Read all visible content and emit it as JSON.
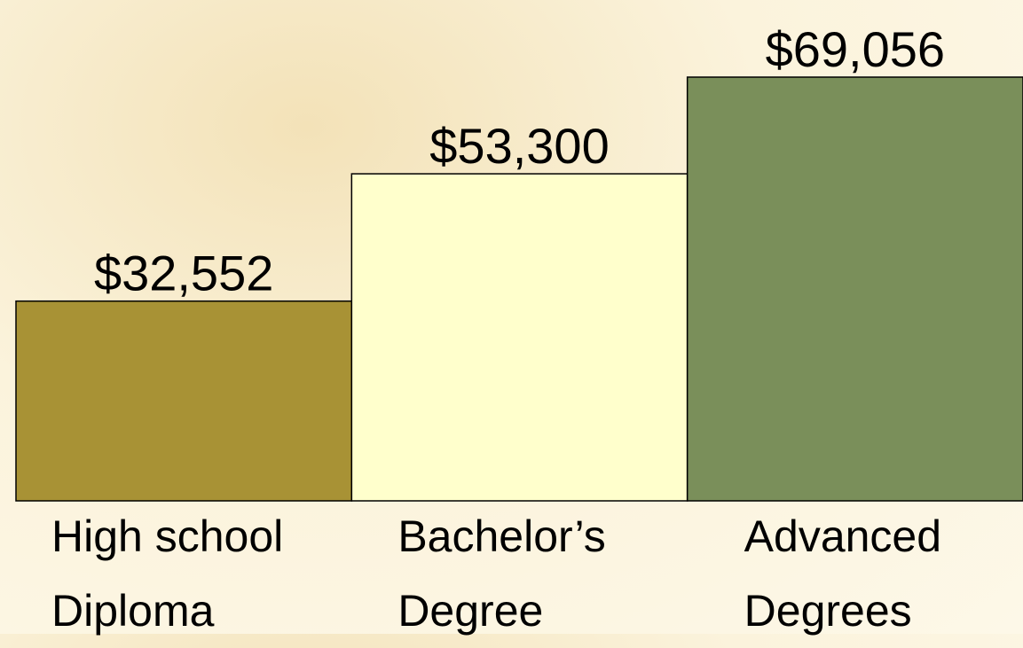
{
  "chart_data": {
    "type": "bar",
    "categories": [
      "High school\nDiploma",
      "Bachelor’s\nDegree",
      "Advanced\nDegrees"
    ],
    "values": [
      32552,
      53300,
      69056
    ],
    "value_labels": [
      "$32,552",
      "$53,300",
      "$69,056"
    ],
    "colors": [
      "#a89235",
      "#ffffcc",
      "#7a8f5a"
    ]
  }
}
